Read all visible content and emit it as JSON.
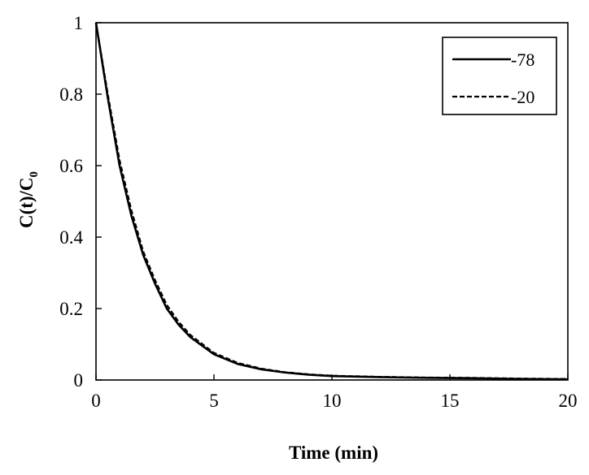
{
  "chart_data": {
    "type": "line",
    "title": "",
    "xlabel": "Time (min)",
    "ylabel_main": "C(t)/C",
    "ylabel_sub": "0",
    "xlim": [
      0,
      20
    ],
    "ylim": [
      0,
      1
    ],
    "x_ticks": [
      0,
      5,
      10,
      15,
      20
    ],
    "x_tick_labels": [
      "0",
      "5",
      "10",
      "15",
      "20"
    ],
    "y_ticks": [
      0,
      0.2,
      0.4,
      0.6,
      0.8,
      1
    ],
    "y_tick_labels": [
      "0",
      "0.2",
      "0.4",
      "0.6",
      "0.8",
      "1"
    ],
    "grid": false,
    "legend_position": "top-right",
    "series": [
      {
        "name": "-78",
        "style": "solid",
        "color": "#000000",
        "x": [
          0,
          0.5,
          1,
          1.5,
          2,
          2.5,
          3,
          3.5,
          4,
          5,
          6,
          7,
          8,
          9,
          10,
          12,
          14,
          16,
          18,
          20
        ],
        "y": [
          1.0,
          0.79,
          0.6,
          0.46,
          0.35,
          0.27,
          0.2,
          0.155,
          0.12,
          0.072,
          0.045,
          0.03,
          0.021,
          0.015,
          0.011,
          0.008,
          0.006,
          0.005,
          0.003,
          0.002
        ]
      },
      {
        "name": "-20",
        "style": "dashed",
        "color": "#000000",
        "x": [
          0,
          0.5,
          1,
          1.5,
          2,
          2.5,
          3,
          3.5,
          4,
          5,
          6,
          7,
          8,
          9,
          10,
          12,
          14,
          16,
          18,
          20
        ],
        "y": [
          1.0,
          0.8,
          0.615,
          0.475,
          0.36,
          0.28,
          0.21,
          0.163,
          0.126,
          0.076,
          0.048,
          0.032,
          0.022,
          0.016,
          0.012,
          0.009,
          0.007,
          0.006,
          0.004,
          0.003
        ]
      }
    ]
  }
}
